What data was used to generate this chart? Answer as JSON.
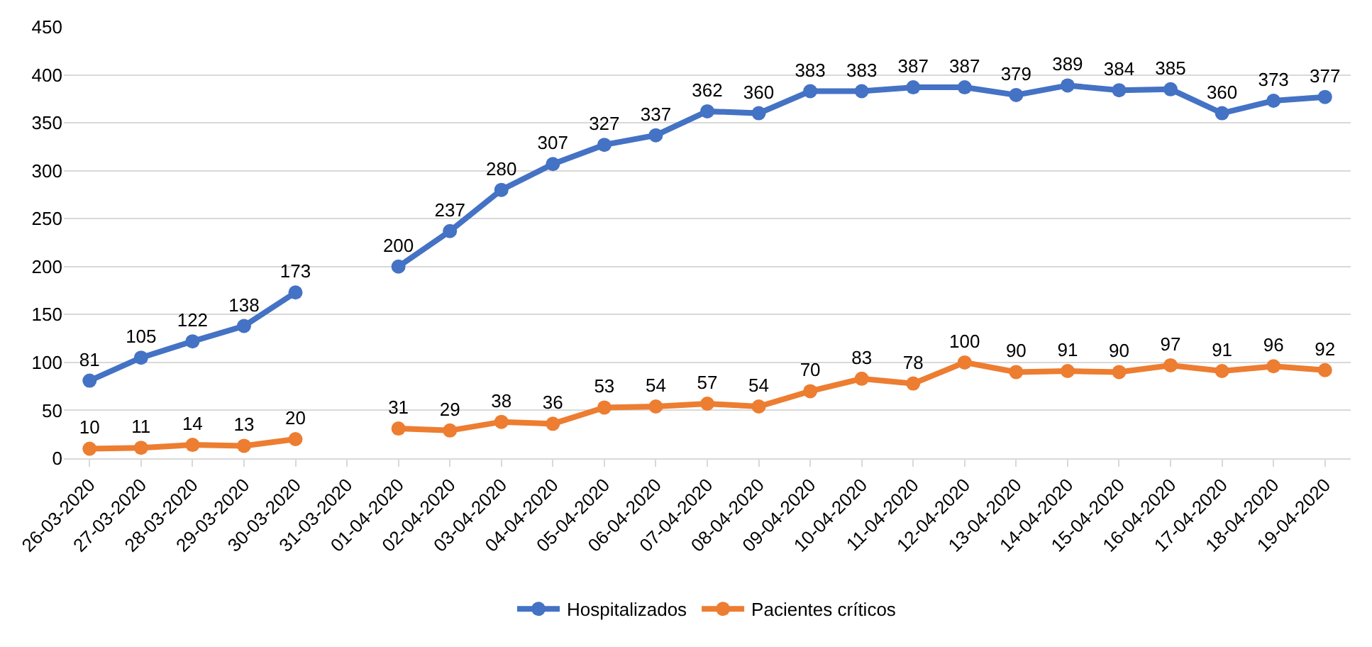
{
  "chart_data": {
    "type": "line",
    "categories": [
      "26-03-2020",
      "27-03-2020",
      "28-03-2020",
      "29-03-2020",
      "30-03-2020",
      "31-03-2020",
      "01-04-2020",
      "02-04-2020",
      "03-04-2020",
      "04-04-2020",
      "05-04-2020",
      "06-04-2020",
      "07-04-2020",
      "08-04-2020",
      "09-04-2020",
      "10-04-2020",
      "11-04-2020",
      "12-04-2020",
      "13-04-2020",
      "14-04-2020",
      "15-04-2020",
      "16-04-2020",
      "17-04-2020",
      "18-04-2020",
      "19-04-2020"
    ],
    "series": [
      {
        "name": "Hospitalizados",
        "color": "#4472c4",
        "values": [
          81,
          105,
          122,
          138,
          173,
          null,
          200,
          237,
          280,
          307,
          327,
          337,
          362,
          360,
          383,
          383,
          387,
          387,
          379,
          389,
          384,
          385,
          360,
          373,
          377
        ]
      },
      {
        "name": "Pacientes críticos",
        "color": "#ed7d31",
        "values": [
          10,
          11,
          14,
          13,
          20,
          null,
          31,
          29,
          38,
          36,
          53,
          54,
          57,
          54,
          70,
          83,
          78,
          100,
          90,
          91,
          90,
          97,
          91,
          96,
          92
        ]
      }
    ],
    "ylim": [
      0,
      450
    ],
    "yticks": [
      0,
      50,
      100,
      150,
      200,
      250,
      300,
      350,
      400,
      450
    ],
    "grid": "y",
    "legend": "bottom",
    "marker": "circle",
    "line_style": "solid",
    "data_labels": true
  }
}
